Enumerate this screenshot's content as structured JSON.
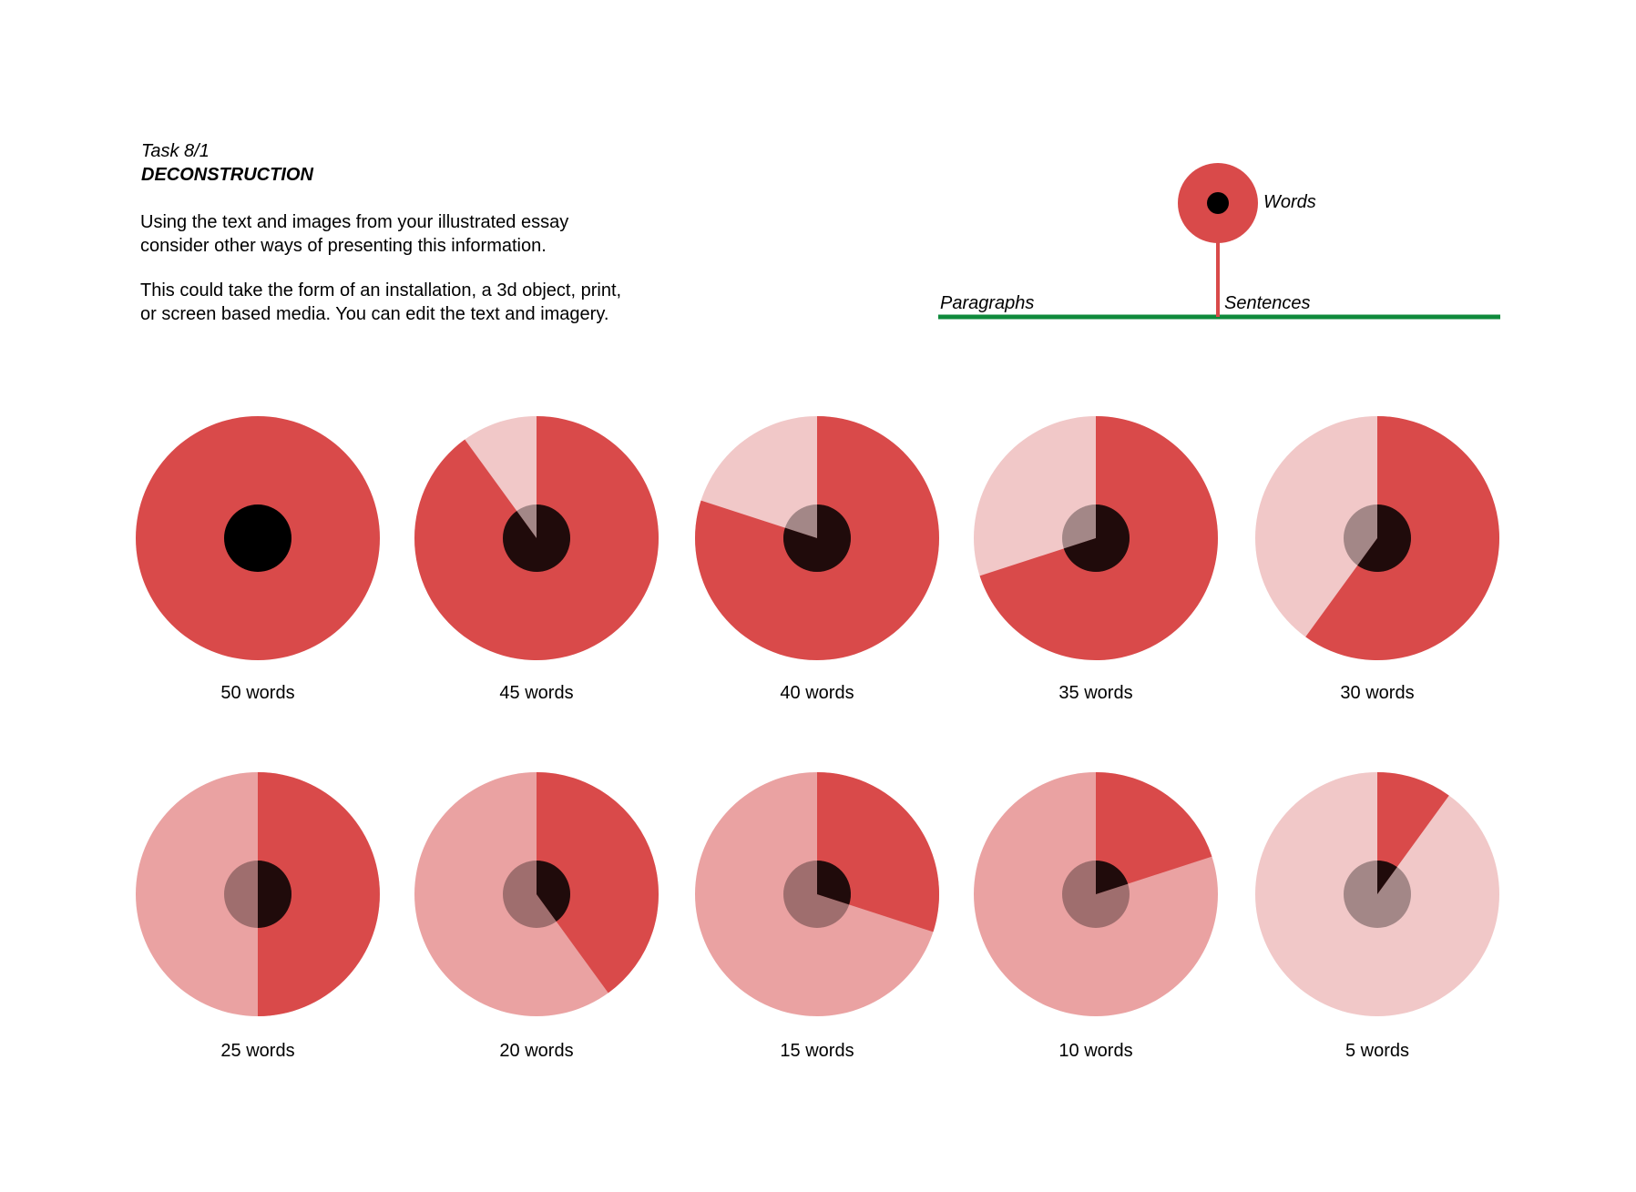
{
  "task": {
    "number": "Task 8/1",
    "title": "DECONSTRUCTION",
    "paragraph1_lines": [
      "Using the text and images from your illustrated essay",
      "consider other ways of presenting this information."
    ],
    "paragraph2_lines": [
      "This could take the form of an installation, a 3d object, print,",
      "or screen based media. You can edit the text and imagery."
    ]
  },
  "legend": {
    "words_label": "Words",
    "paragraphs_label": "Paragraphs",
    "sentences_label": "Sentences",
    "colors": {
      "words": "#d94a4a",
      "paragraphs_line": "#0f8a3c"
    }
  },
  "wheels": [
    {
      "label": "50 words",
      "words": 50,
      "max": 50,
      "faded": "#f1c8c8"
    },
    {
      "label": "45 words",
      "words": 45,
      "max": 50,
      "faded": "#f1c8c8"
    },
    {
      "label": "40 words",
      "words": 40,
      "max": 50,
      "faded": "#f1c8c8"
    },
    {
      "label": "35 words",
      "words": 35,
      "max": 50,
      "faded": "#f1c8c8"
    },
    {
      "label": "30 words",
      "words": 30,
      "max": 50,
      "faded": "#f1c8c8"
    },
    {
      "label": "25 words",
      "words": 25,
      "max": 50,
      "faded": "#eaa2a2"
    },
    {
      "label": "20 words",
      "words": 20,
      "max": 50,
      "faded": "#eaa2a2"
    },
    {
      "label": "15 words",
      "words": 15,
      "max": 50,
      "faded": "#eaa2a2"
    },
    {
      "label": "10 words",
      "words": 10,
      "max": 50,
      "faded": "#eaa2a2"
    },
    {
      "label": "5 words",
      "words": 5,
      "max": 50,
      "faded": "#f1c8c8"
    }
  ],
  "colors": {
    "active": "#d94a4a",
    "center": "#000000"
  }
}
